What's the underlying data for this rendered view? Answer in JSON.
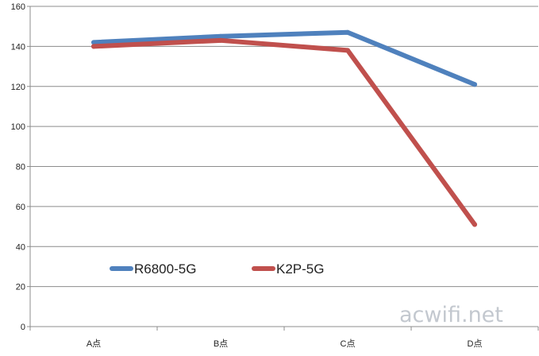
{
  "chart_data": {
    "type": "line",
    "categories": [
      "A点",
      "B点",
      "C点",
      "D点"
    ],
    "series": [
      {
        "name": "R6800-5G",
        "values": [
          142,
          145,
          147,
          121
        ],
        "color": "#4f81bd"
      },
      {
        "name": "K2P-5G",
        "values": [
          140,
          143,
          138,
          51
        ],
        "color": "#c0504d"
      }
    ],
    "title": "",
    "xlabel": "",
    "ylabel": "",
    "ylim": [
      0,
      160
    ],
    "yticks": [
      0,
      20,
      40,
      60,
      80,
      100,
      120,
      140,
      160
    ],
    "grid": true,
    "legend": "bottom-left"
  },
  "watermark": "acwifi.net"
}
